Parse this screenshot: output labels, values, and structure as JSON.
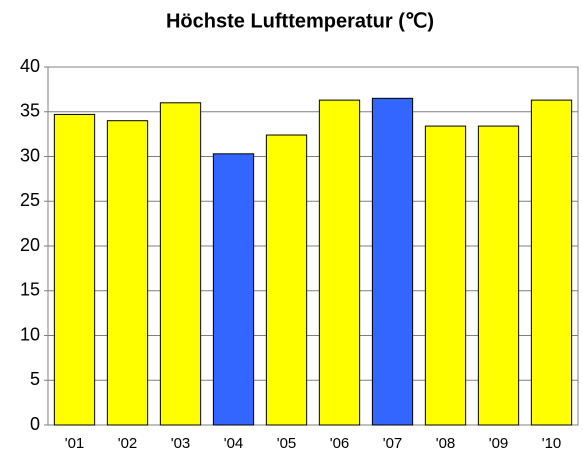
{
  "chart_data": {
    "type": "bar",
    "title": "Höchste Lufttemperatur (℃)",
    "categories": [
      "'01",
      "'02",
      "'03",
      "'04",
      "'05",
      "'06",
      "'07",
      "'08",
      "'09",
      "'10"
    ],
    "values": [
      34.7,
      34.0,
      36.0,
      30.3,
      32.4,
      36.3,
      36.5,
      33.4,
      33.4,
      36.3
    ],
    "colors": [
      "#ffff00",
      "#ffff00",
      "#ffff00",
      "#3366ff",
      "#ffff00",
      "#ffff00",
      "#3366ff",
      "#ffff00",
      "#ffff00",
      "#ffff00"
    ],
    "ylim": [
      0,
      40
    ],
    "yticks": [
      0,
      5,
      10,
      15,
      20,
      25,
      30,
      35,
      40
    ],
    "grid": true
  }
}
